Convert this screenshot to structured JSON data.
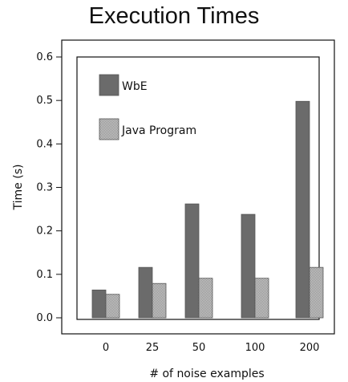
{
  "chart_data": {
    "type": "bar",
    "title": "Execution Times",
    "xlabel": "# of noise examples",
    "ylabel": "Time (s)",
    "categories": [
      "0",
      "25",
      "50",
      "100",
      "200"
    ],
    "ylim": [
      0.0,
      0.6
    ],
    "yticks": [
      "0.0",
      "0.1",
      "0.2",
      "0.3",
      "0.4",
      "0.5",
      "0.6"
    ],
    "legend_position": "top-left",
    "grid": false,
    "series": [
      {
        "name": "WbE",
        "values": [
          0.064,
          0.116,
          0.262,
          0.238,
          0.498
        ],
        "color": "#6b6b6b",
        "pattern": "solid"
      },
      {
        "name": "Java Program",
        "values": [
          0.054,
          0.079,
          0.091,
          0.091,
          0.116
        ],
        "color": "#b5b5b5",
        "pattern": "checker"
      }
    ]
  }
}
